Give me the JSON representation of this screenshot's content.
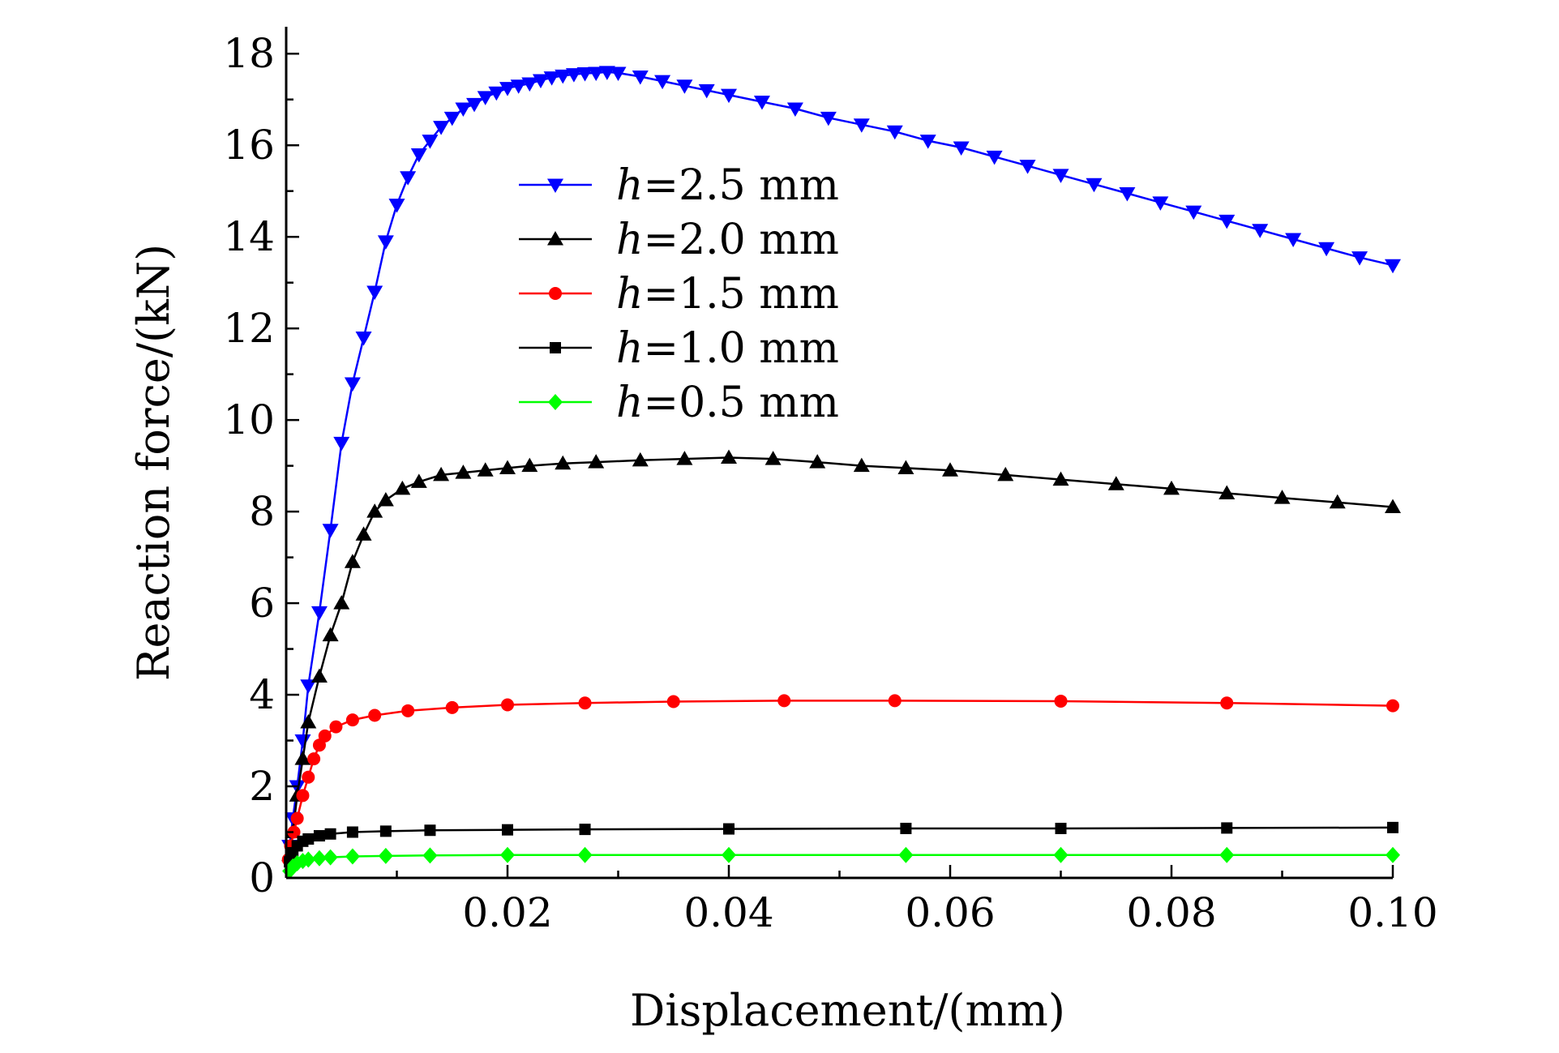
{
  "chart_data": {
    "type": "line",
    "xlabel": "Displacement/(mm)",
    "ylabel": "Reaction force/(kN)",
    "xlim": [
      0,
      0.1
    ],
    "ylim": [
      0,
      18.5
    ],
    "xticks": [
      0.02,
      0.04,
      0.06,
      0.08,
      0.1
    ],
    "xtick_labels": [
      "0.02",
      "0.04",
      "0.06",
      "0.08",
      "0.10"
    ],
    "yticks": [
      0,
      2,
      4,
      6,
      8,
      10,
      12,
      14,
      16,
      18
    ],
    "ytick_labels": [
      "0",
      "2",
      "4",
      "6",
      "8",
      "10",
      "12",
      "14",
      "16",
      "18"
    ],
    "grid": false,
    "legend_position": "upper-center",
    "series": [
      {
        "name": "=2.5 mm",
        "name_prefix": "h",
        "color": "#0000ff",
        "marker": "triangle-down",
        "x": [
          0,
          0.0003,
          0.0006,
          0.001,
          0.0015,
          0.002,
          0.003,
          0.004,
          0.005,
          0.006,
          0.007,
          0.008,
          0.009,
          0.01,
          0.011,
          0.012,
          0.013,
          0.014,
          0.015,
          0.016,
          0.017,
          0.018,
          0.019,
          0.02,
          0.021,
          0.022,
          0.023,
          0.024,
          0.025,
          0.026,
          0.027,
          0.028,
          0.029,
          0.03,
          0.032,
          0.034,
          0.036,
          0.038,
          0.04,
          0.043,
          0.046,
          0.049,
          0.052,
          0.055,
          0.058,
          0.061,
          0.064,
          0.067,
          0.07,
          0.073,
          0.076,
          0.079,
          0.082,
          0.085,
          0.088,
          0.091,
          0.094,
          0.097,
          0.1
        ],
        "y": [
          0,
          0.7,
          1.3,
          2.0,
          3.0,
          4.2,
          5.8,
          7.6,
          9.5,
          10.8,
          11.8,
          12.8,
          13.9,
          14.7,
          15.3,
          15.8,
          16.1,
          16.4,
          16.6,
          16.8,
          16.9,
          17.05,
          17.15,
          17.25,
          17.3,
          17.35,
          17.42,
          17.48,
          17.52,
          17.55,
          17.57,
          17.58,
          17.6,
          17.58,
          17.5,
          17.4,
          17.3,
          17.2,
          17.1,
          16.95,
          16.8,
          16.6,
          16.45,
          16.3,
          16.1,
          15.95,
          15.75,
          15.55,
          15.35,
          15.15,
          14.95,
          14.75,
          14.55,
          14.35,
          14.15,
          13.95,
          13.75,
          13.55,
          13.38
        ]
      },
      {
        "name": "=2.0 mm",
        "name_prefix": "h",
        "color": "#000000",
        "marker": "triangle-up",
        "x": [
          0,
          0.0003,
          0.0006,
          0.001,
          0.0015,
          0.002,
          0.003,
          0.004,
          0.005,
          0.006,
          0.007,
          0.008,
          0.009,
          0.0105,
          0.012,
          0.014,
          0.016,
          0.018,
          0.02,
          0.022,
          0.025,
          0.028,
          0.032,
          0.036,
          0.04,
          0.044,
          0.048,
          0.052,
          0.056,
          0.06,
          0.065,
          0.07,
          0.075,
          0.08,
          0.085,
          0.09,
          0.095,
          0.1
        ],
        "y": [
          0,
          0.5,
          1.0,
          1.8,
          2.6,
          3.4,
          4.4,
          5.3,
          6.0,
          6.9,
          7.5,
          8.0,
          8.25,
          8.5,
          8.65,
          8.8,
          8.85,
          8.9,
          8.95,
          9.0,
          9.05,
          9.08,
          9.12,
          9.15,
          9.18,
          9.15,
          9.08,
          9.0,
          8.95,
          8.9,
          8.8,
          8.7,
          8.6,
          8.5,
          8.4,
          8.3,
          8.2,
          8.1
        ]
      },
      {
        "name": "=1.5 mm",
        "name_prefix": "h",
        "color": "#ff0000",
        "marker": "circle",
        "x": [
          0,
          0.0002,
          0.0004,
          0.0007,
          0.001,
          0.0015,
          0.002,
          0.0025,
          0.003,
          0.0035,
          0.0045,
          0.006,
          0.008,
          0.011,
          0.015,
          0.02,
          0.027,
          0.035,
          0.045,
          0.055,
          0.07,
          0.085,
          0.1
        ],
        "y": [
          0,
          0.4,
          0.7,
          1.0,
          1.3,
          1.8,
          2.2,
          2.6,
          2.9,
          3.1,
          3.3,
          3.45,
          3.55,
          3.65,
          3.72,
          3.78,
          3.82,
          3.85,
          3.87,
          3.87,
          3.86,
          3.82,
          3.76
        ]
      },
      {
        "name": "=1.0 mm",
        "name_prefix": "h",
        "color": "#000000",
        "marker": "square",
        "x": [
          0,
          0.0003,
          0.0006,
          0.001,
          0.0015,
          0.002,
          0.003,
          0.004,
          0.006,
          0.009,
          0.013,
          0.02,
          0.027,
          0.04,
          0.056,
          0.07,
          0.085,
          0.1
        ],
        "y": [
          0,
          0.35,
          0.55,
          0.7,
          0.8,
          0.85,
          0.92,
          0.96,
          1.0,
          1.02,
          1.04,
          1.05,
          1.06,
          1.07,
          1.08,
          1.08,
          1.09,
          1.1
        ]
      },
      {
        "name": "=0.5 mm",
        "name_prefix": "h",
        "color": "#00ff00",
        "marker": "diamond",
        "x": [
          0,
          0.0003,
          0.0006,
          0.001,
          0.0015,
          0.002,
          0.003,
          0.004,
          0.006,
          0.009,
          0.013,
          0.02,
          0.027,
          0.04,
          0.056,
          0.07,
          0.085,
          0.1
        ],
        "y": [
          0,
          0.15,
          0.25,
          0.32,
          0.37,
          0.4,
          0.43,
          0.45,
          0.47,
          0.48,
          0.49,
          0.5,
          0.5,
          0.5,
          0.5,
          0.5,
          0.5,
          0.5
        ]
      }
    ]
  }
}
